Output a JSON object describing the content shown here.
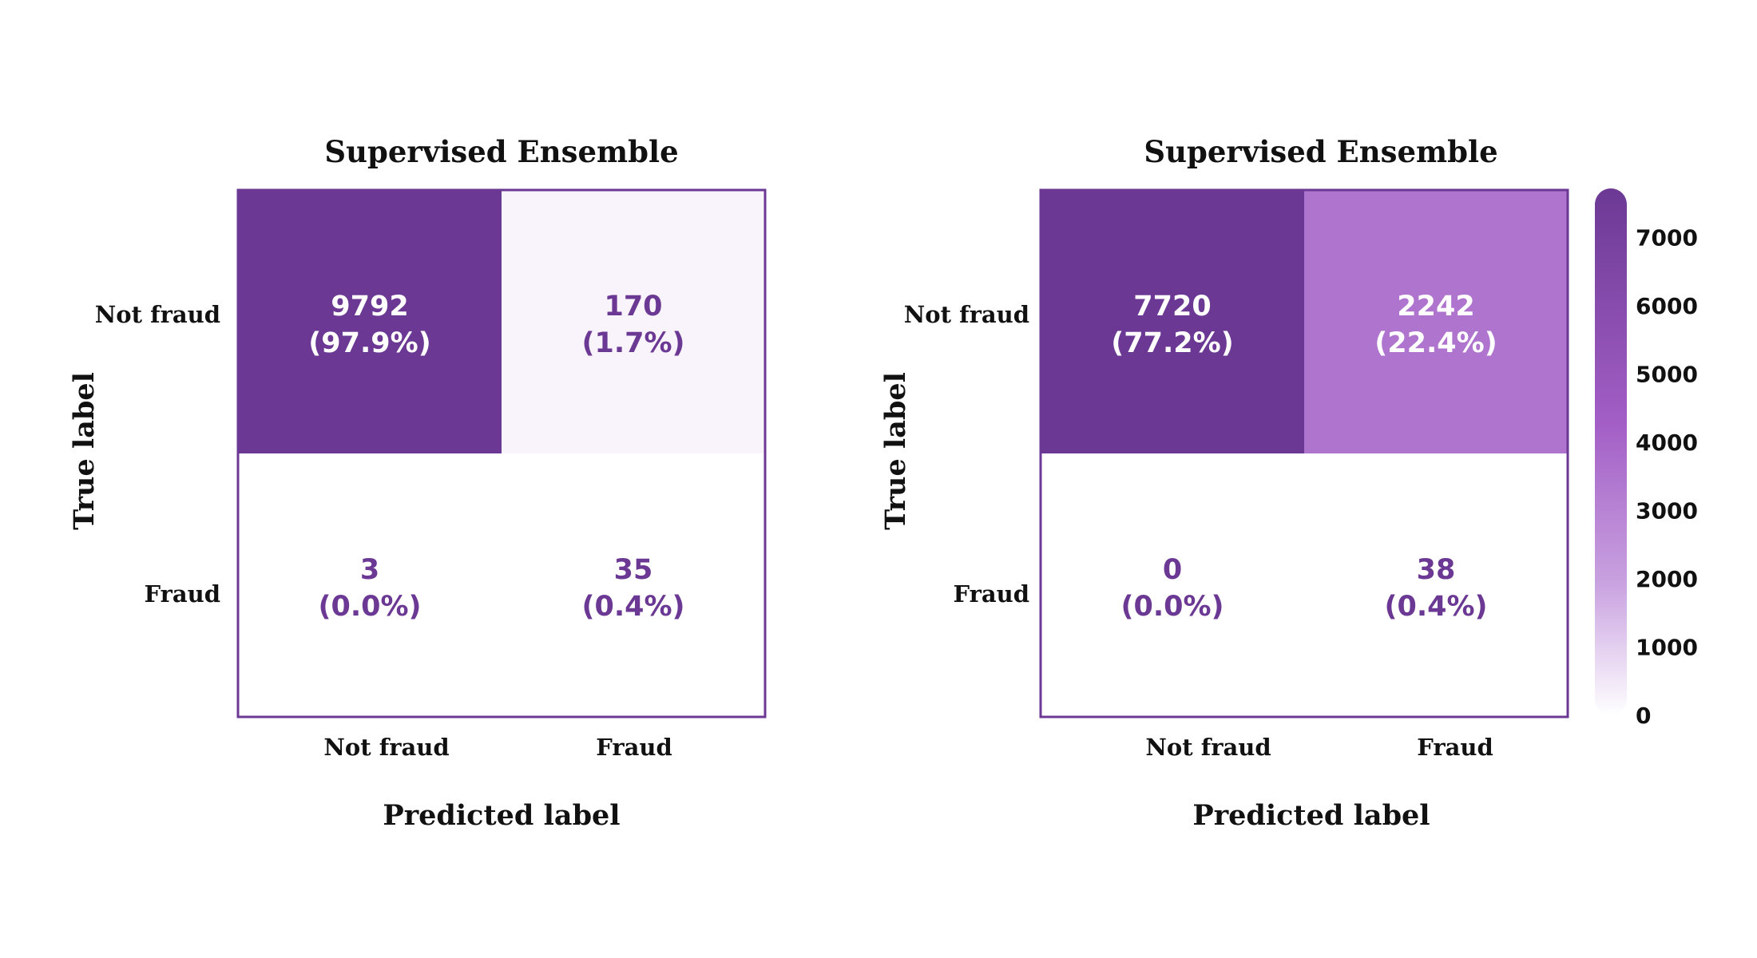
{
  "colors": {
    "dark": "#6b3994",
    "light": "#ffffff",
    "border": "#6b3994",
    "text_on_dark": "#ffffff",
    "text_on_light": "#6b3994"
  },
  "chart_data": [
    {
      "type": "heatmap",
      "title": "Supervised Ensemble",
      "xlabel": "Predicted label",
      "ylabel": "True label",
      "x_categories": [
        "Not fraud",
        "Fraud"
      ],
      "y_categories": [
        "Not fraud",
        "Fraud"
      ],
      "values": [
        [
          9792,
          170
        ],
        [
          3,
          35
        ]
      ],
      "percentages": [
        [
          "(97.9%)",
          "(1.7%)"
        ],
        [
          "(0.0%)",
          "(0.4%)"
        ]
      ],
      "vmax": 7720,
      "colorbar": false
    },
    {
      "type": "heatmap",
      "title": "Supervised Ensemble",
      "xlabel": "Predicted label",
      "ylabel": "True label",
      "x_categories": [
        "Not fraud",
        "Fraud"
      ],
      "y_categories": [
        "Not fraud",
        "Fraud"
      ],
      "values": [
        [
          7720,
          2242
        ],
        [
          0,
          38
        ]
      ],
      "percentages": [
        [
          "(77.2%)",
          "(22.4%)"
        ],
        [
          "(0.0%)",
          "(0.4%)"
        ]
      ],
      "vmax": 7720,
      "colorbar": true,
      "colorbar_ticks": [
        0,
        1000,
        2000,
        3000,
        4000,
        5000,
        6000,
        7000
      ],
      "colorbar_range": [
        0,
        7720
      ]
    }
  ]
}
